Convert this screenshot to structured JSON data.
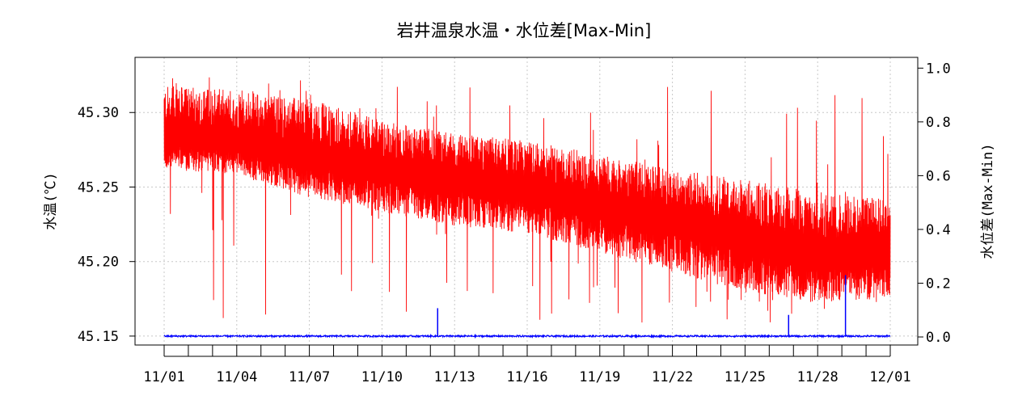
{
  "chart_data": {
    "type": "line",
    "title": "岩井温泉水温・水位差[Max-Min]",
    "ylabel": "水温(℃)",
    "y2label": "水位差(Max-Min)",
    "xlabel": "",
    "x_tick_labels": [
      "11/01",
      "11/04",
      "11/07",
      "11/10",
      "11/13",
      "11/16",
      "11/19",
      "11/22",
      "11/25",
      "11/28",
      "12/01"
    ],
    "y_tick_labels": [
      "45.15",
      "45.20",
      "45.25",
      "45.30"
    ],
    "y2_tick_labels": [
      "0.0",
      "0.2",
      "0.4",
      "0.6",
      "0.8",
      "1.0"
    ],
    "xlim": [
      "11/01",
      "12/01"
    ],
    "ylim": [
      45.144,
      45.337
    ],
    "y2lim": [
      -0.03,
      1.04
    ],
    "grid": true,
    "series": [
      {
        "axis": "left",
        "color": "#ff0000",
        "x_days": [
          0,
          3,
          6,
          9,
          12,
          15,
          18,
          21,
          24,
          27,
          30
        ],
        "center": [
          45.283,
          45.279,
          45.271,
          45.262,
          45.256,
          45.248,
          45.238,
          45.228,
          45.214,
          45.204,
          45.207
        ],
        "low_envelope": [
          45.262,
          45.258,
          45.243,
          45.233,
          45.224,
          45.219,
          45.206,
          45.193,
          45.179,
          45.172,
          45.175
        ],
        "high_envelope": [
          45.318,
          45.315,
          45.309,
          45.295,
          45.286,
          45.281,
          45.272,
          45.262,
          45.255,
          45.247,
          45.242
        ],
        "min": 45.158,
        "max": 45.326
      },
      {
        "axis": "right",
        "color": "#0000ff",
        "baseline": 0.003,
        "spikes": [
          {
            "day": 11.3,
            "value": 0.107
          },
          {
            "day": 25.8,
            "value": 0.082
          },
          {
            "day": 28.15,
            "value": 0.23
          }
        ]
      }
    ]
  }
}
